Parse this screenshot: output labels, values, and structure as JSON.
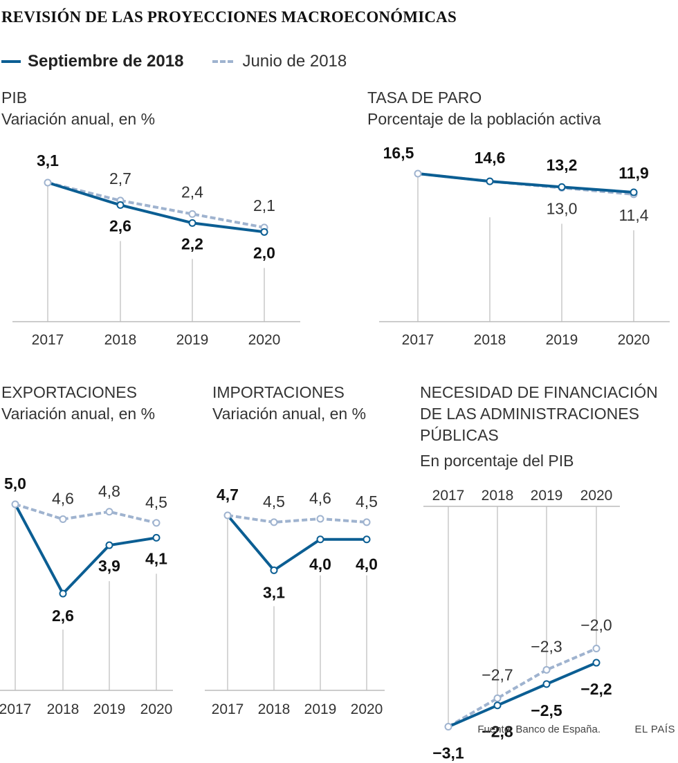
{
  "title": "REVISIÓN DE LAS PROYECCIONES MACROECONÓMICAS",
  "legend": {
    "series_current": "Septiembre de 2018",
    "series_previous": "Junio de 2018"
  },
  "colors": {
    "current": "#0b5e93",
    "previous": "#9fb3cf",
    "axis": "#bbbbbb",
    "label_dark": "#111111",
    "label_light": "#333333"
  },
  "chart_data": [
    {
      "id": "pib",
      "type": "line",
      "title": "PIB",
      "subtitle": "Variación anual, en %",
      "x": [
        "2017",
        "2018",
        "2019",
        "2020"
      ],
      "series": [
        {
          "name": "Septiembre de 2018",
          "values": [
            3.1,
            2.6,
            2.2,
            2.0
          ],
          "labels": [
            "3,1",
            "2,6",
            "2,2",
            "2,0"
          ]
        },
        {
          "name": "Junio de 2018",
          "values": [
            3.1,
            2.7,
            2.4,
            2.1
          ],
          "labels": [
            "",
            "2,7",
            "2,4",
            "2,1"
          ]
        }
      ],
      "ylim": [
        0,
        3.1
      ]
    },
    {
      "id": "paro",
      "type": "line",
      "title": "TASA DE PARO",
      "subtitle": "Porcentaje de la población activa",
      "x": [
        "2017",
        "2018",
        "2019",
        "2020"
      ],
      "series": [
        {
          "name": "Septiembre de 2018",
          "values": [
            16.5,
            14.6,
            13.2,
            11.9
          ],
          "labels": [
            "16,5",
            "14,6",
            "13,2",
            "11,9"
          ]
        },
        {
          "name": "Junio de 2018",
          "values": [
            16.5,
            14.6,
            13.0,
            11.4
          ],
          "labels": [
            "",
            "",
            "13,0",
            "11,4"
          ]
        }
      ],
      "ylim": [
        -20,
        16.5
      ]
    },
    {
      "id": "export",
      "type": "line",
      "title": "EXPORTACIONES",
      "subtitle": "Variación anual, en %",
      "x": [
        "2017",
        "2018",
        "2019",
        "2020"
      ],
      "series": [
        {
          "name": "Septiembre de 2018",
          "values": [
            5.0,
            2.6,
            3.9,
            4.1
          ],
          "labels": [
            "5,0",
            "2,6",
            "3,9",
            "4,1"
          ]
        },
        {
          "name": "Junio de 2018",
          "values": [
            5.0,
            4.6,
            4.8,
            4.5
          ],
          "labels": [
            "",
            "4,6",
            "4,8",
            "4,5"
          ]
        }
      ],
      "ylim": [
        0,
        5.0
      ]
    },
    {
      "id": "import",
      "type": "line",
      "title": "IMPORTACIONES",
      "subtitle": "Variación anual, en %",
      "x": [
        "2017",
        "2018",
        "2019",
        "2020"
      ],
      "series": [
        {
          "name": "Septiembre de 2018",
          "values": [
            4.7,
            3.1,
            4.0,
            4.0
          ],
          "labels": [
            "4,7",
            "3,1",
            "4,0",
            "4,0"
          ]
        },
        {
          "name": "Junio de 2018",
          "values": [
            4.7,
            4.5,
            4.6,
            4.5
          ],
          "labels": [
            "",
            "4,5",
            "4,6",
            "4,5"
          ]
        }
      ],
      "ylim": [
        -0.4,
        4.7
      ]
    },
    {
      "id": "deficit",
      "type": "line",
      "title_lines": [
        "NECESIDAD DE FINANCIACIÓN",
        "DE LAS ADMINISTRACIONES",
        "PÚBLICAS"
      ],
      "subtitle": "En porcentaje del PIB",
      "x": [
        "2017",
        "2018",
        "2019",
        "2020"
      ],
      "series": [
        {
          "name": "Septiembre de 2018",
          "values": [
            -3.1,
            -2.8,
            -2.5,
            -2.2
          ],
          "labels": [
            "−3,1",
            "−2,8",
            "−2,5",
            "−2,2"
          ]
        },
        {
          "name": "Junio de 2018",
          "values": [
            -3.1,
            -2.7,
            -2.3,
            -2.0
          ],
          "labels": [
            "",
            "−2,7",
            "−2,3",
            "−2,0"
          ]
        }
      ],
      "ylim": [
        -4.0,
        0
      ]
    }
  ],
  "footer": {
    "source": "Fuente: Banco de España.",
    "brand": "EL PAÍS"
  }
}
